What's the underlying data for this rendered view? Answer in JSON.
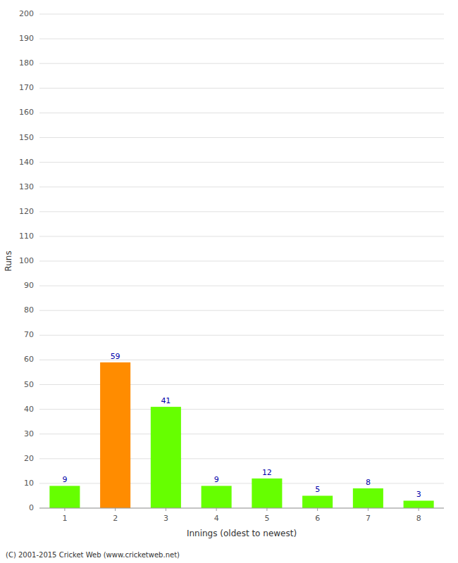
{
  "chart_data": {
    "type": "bar",
    "categories": [
      "1",
      "2",
      "3",
      "4",
      "5",
      "6",
      "7",
      "8"
    ],
    "values": [
      9,
      59,
      41,
      9,
      12,
      5,
      8,
      3
    ],
    "colors": [
      "#66ff00",
      "#ff8c00",
      "#66ff00",
      "#66ff00",
      "#66ff00",
      "#66ff00",
      "#66ff00",
      "#66ff00"
    ],
    "xlabel": "Innings (oldest to newest)",
    "ylabel": "Runs",
    "ylim": [
      0,
      200
    ],
    "yticks": [
      0,
      10,
      20,
      30,
      40,
      50,
      60,
      70,
      80,
      90,
      100,
      110,
      120,
      130,
      140,
      150,
      160,
      170,
      180,
      190,
      200
    ],
    "grid": true,
    "data_labels": true,
    "annotations": [
      "(C) 2001-2015 Cricket Web (www.cricketweb.net)"
    ]
  }
}
